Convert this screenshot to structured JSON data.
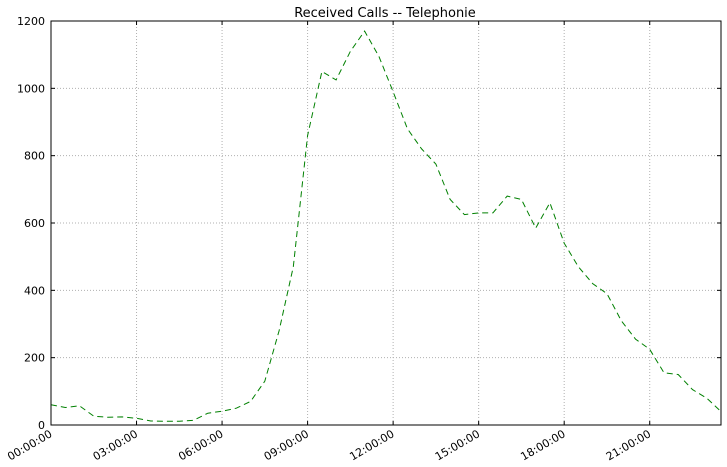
{
  "chart_data": {
    "type": "line",
    "title": "Received Calls -- Telephonie",
    "xlabel": "",
    "ylabel": "",
    "xlim": [
      "00:00:00",
      "23:30:00"
    ],
    "ylim": [
      0,
      1200
    ],
    "grid": true,
    "line_style": "dashed",
    "colors": {
      "series": "#008000",
      "grid": "#b0b0b0",
      "axes": "#000000"
    },
    "x_ticks": [
      "00:00:00",
      "03:00:00",
      "06:00:00",
      "09:00:00",
      "12:00:00",
      "15:00:00",
      "18:00:00",
      "21:00:00"
    ],
    "y_ticks": [
      0,
      200,
      400,
      600,
      800,
      1000,
      1200
    ],
    "x": [
      "00:00",
      "00:30",
      "01:00",
      "01:30",
      "02:00",
      "02:30",
      "03:00",
      "03:30",
      "04:00",
      "04:30",
      "05:00",
      "05:30",
      "06:00",
      "06:30",
      "07:00",
      "07:30",
      "08:00",
      "08:30",
      "09:00",
      "09:30",
      "10:00",
      "10:30",
      "11:00",
      "11:30",
      "12:00",
      "12:30",
      "13:00",
      "13:30",
      "14:00",
      "14:30",
      "15:00",
      "15:30",
      "16:00",
      "16:30",
      "17:00",
      "17:30",
      "18:00",
      "18:30",
      "19:00",
      "19:30",
      "20:00",
      "20:30",
      "21:00",
      "21:30",
      "22:00",
      "22:30",
      "23:00",
      "23:30"
    ],
    "values": [
      60,
      52,
      57,
      26,
      23,
      24,
      20,
      12,
      11,
      11,
      14,
      35,
      41,
      50,
      70,
      130,
      280,
      470,
      860,
      1050,
      1025,
      1110,
      1170,
      1095,
      990,
      880,
      820,
      775,
      670,
      625,
      630,
      630,
      680,
      670,
      585,
      660,
      540,
      470,
      420,
      390,
      310,
      255,
      225,
      155,
      150,
      105,
      80,
      40
    ]
  }
}
